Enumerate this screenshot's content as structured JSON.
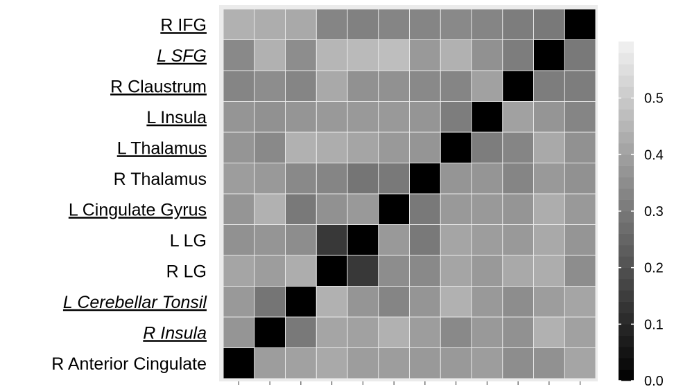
{
  "chart_data": {
    "type": "heatmap",
    "title": "",
    "xlabel": "",
    "ylabel": "",
    "labels_top_to_bottom": [
      {
        "text": "R IFG",
        "underline": true,
        "italic": false
      },
      {
        "text": "L SFG",
        "underline": true,
        "italic": true
      },
      {
        "text": "R Claustrum",
        "underline": true,
        "italic": false
      },
      {
        "text": "L Insula",
        "underline": true,
        "italic": false
      },
      {
        "text": "L Thalamus",
        "underline": true,
        "italic": false
      },
      {
        "text": "R Thalamus",
        "underline": false,
        "italic": false
      },
      {
        "text": "L Cingulate Gyrus",
        "underline": true,
        "italic": false
      },
      {
        "text": "L LG",
        "underline": false,
        "italic": false
      },
      {
        "text": "R LG",
        "underline": false,
        "italic": false
      },
      {
        "text": "L Cerebellar Tonsil",
        "underline": true,
        "italic": true
      },
      {
        "text": "R Insula",
        "underline": true,
        "italic": true
      },
      {
        "text": "R Anterior Cingulate",
        "underline": false,
        "italic": false
      }
    ],
    "values_top_to_bottom": [
      [
        0.44,
        0.43,
        0.42,
        0.33,
        0.32,
        0.33,
        0.33,
        0.34,
        0.33,
        0.31,
        0.3,
        0.0
      ],
      [
        0.34,
        0.44,
        0.35,
        0.45,
        0.46,
        0.47,
        0.38,
        0.44,
        0.36,
        0.31,
        0.0,
        0.3
      ],
      [
        0.33,
        0.35,
        0.33,
        0.42,
        0.36,
        0.36,
        0.34,
        0.33,
        0.4,
        0.0,
        0.31,
        0.31
      ],
      [
        0.37,
        0.36,
        0.37,
        0.38,
        0.38,
        0.38,
        0.37,
        0.31,
        0.0,
        0.4,
        0.37,
        0.33
      ],
      [
        0.37,
        0.34,
        0.44,
        0.43,
        0.41,
        0.38,
        0.37,
        0.0,
        0.31,
        0.33,
        0.42,
        0.36
      ],
      [
        0.39,
        0.38,
        0.34,
        0.33,
        0.29,
        0.3,
        0.0,
        0.37,
        0.37,
        0.33,
        0.38,
        0.36
      ],
      [
        0.37,
        0.44,
        0.3,
        0.36,
        0.38,
        0.0,
        0.3,
        0.38,
        0.38,
        0.37,
        0.43,
        0.38
      ],
      [
        0.36,
        0.37,
        0.35,
        0.14,
        0.0,
        0.38,
        0.3,
        0.41,
        0.39,
        0.38,
        0.42,
        0.37
      ],
      [
        0.41,
        0.39,
        0.43,
        0.0,
        0.14,
        0.35,
        0.34,
        0.41,
        0.38,
        0.42,
        0.43,
        0.35
      ],
      [
        0.38,
        0.29,
        0.0,
        0.44,
        0.37,
        0.33,
        0.37,
        0.44,
        0.38,
        0.35,
        0.39,
        0.41
      ],
      [
        0.37,
        0.0,
        0.3,
        0.41,
        0.4,
        0.44,
        0.39,
        0.34,
        0.38,
        0.36,
        0.44,
        0.4
      ],
      [
        0.0,
        0.39,
        0.4,
        0.42,
        0.39,
        0.39,
        0.38,
        0.38,
        0.39,
        0.35,
        0.36,
        0.41
      ]
    ],
    "colorbar": {
      "range": [
        0.0,
        0.6
      ],
      "ticks": [
        0.0,
        0.1,
        0.2,
        0.3,
        0.4,
        0.5
      ],
      "tick_labels": [
        "0.0",
        "0.1",
        "0.2",
        "0.3",
        "0.4",
        "0.5"
      ],
      "low_color": "#000000",
      "high_color": "#f2f2f2"
    },
    "grid": true,
    "legend_position": "right"
  },
  "colors": {
    "panel_background": "#ebebeb",
    "grid_line": "#ffffff",
    "text": "#000000"
  }
}
